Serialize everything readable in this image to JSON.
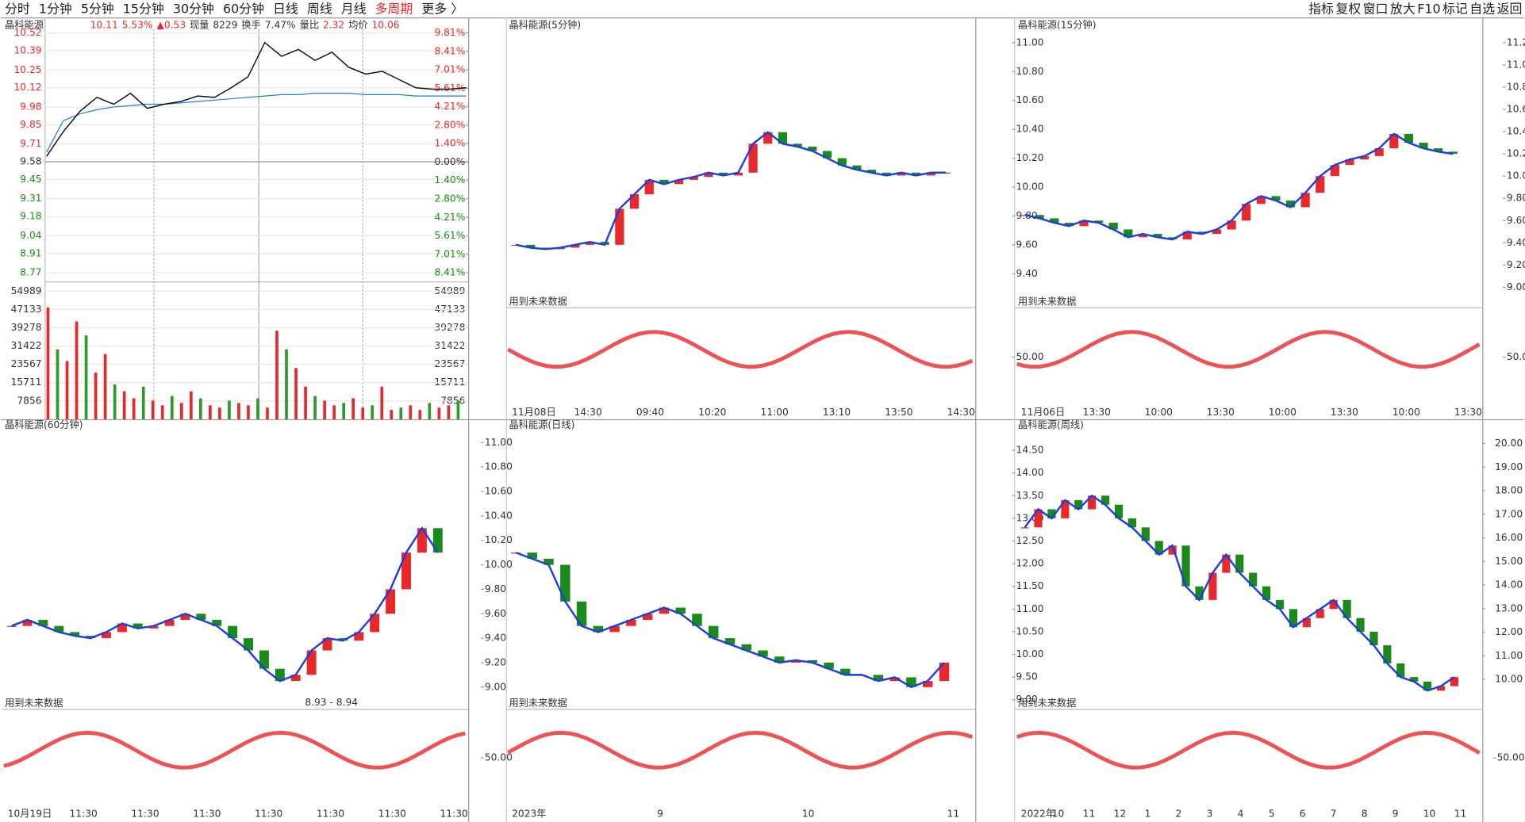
{
  "toolbar": {
    "tabs": [
      "分时",
      "1分钟",
      "5分钟",
      "15分钟",
      "30分钟",
      "60分钟",
      "日线",
      "周线",
      "月线",
      "多周期",
      "更多 〉"
    ],
    "active": "多周期",
    "tools": [
      "指标",
      "复权",
      "窗口",
      "放大",
      "F10",
      "标记",
      "自选",
      "返回"
    ]
  },
  "intraday": {
    "name": "晶科能源",
    "quote": [
      {
        "t": "10.11",
        "c": "red"
      },
      {
        "t": "5.53%",
        "c": "red"
      },
      {
        "t": "▲0.53",
        "c": "red"
      },
      {
        "t": "现量",
        "c": "k"
      },
      {
        "t": "8229",
        "c": "k"
      },
      {
        "t": "换手",
        "c": "k"
      },
      {
        "t": "7.47%",
        "c": "k"
      },
      {
        "t": "量比",
        "c": "k"
      },
      {
        "t": "2.32",
        "c": "red"
      },
      {
        "t": "均价",
        "c": "k"
      },
      {
        "t": "10.06",
        "c": "red"
      }
    ],
    "ylim": [
      8.77,
      10.52
    ],
    "yticks": [
      10.52,
      10.39,
      10.25,
      10.12,
      9.98,
      9.85,
      9.71,
      9.58,
      9.45,
      9.31,
      9.18,
      9.04,
      8.91,
      8.77
    ],
    "y2lim": [
      -8.41,
      9.81
    ],
    "y2ticks": [
      {
        "value": 9.81,
        "label": "9.81%"
      },
      {
        "value": 8.41,
        "label": "8.41%"
      },
      {
        "value": 7.01,
        "label": "7.01%"
      },
      {
        "value": 5.61,
        "label": "5.61%"
      },
      {
        "value": 4.21,
        "label": "4.21%"
      },
      {
        "value": 2.8,
        "label": "2.80%"
      },
      {
        "value": 1.4,
        "label": "1.40%"
      },
      {
        "value": 0,
        "label": "0.00%"
      },
      {
        "value": -1.4,
        "label": "1.40%"
      },
      {
        "value": -2.8,
        "label": "2.80%"
      },
      {
        "value": -4.21,
        "label": "4.21%"
      },
      {
        "value": -5.61,
        "label": "5.61%"
      },
      {
        "value": -7.01,
        "label": "7.01%"
      },
      {
        "value": -8.41,
        "label": "8.41%"
      }
    ],
    "price": [
      9.62,
      9.8,
      9.95,
      10.05,
      10.0,
      10.08,
      9.97,
      10.0,
      10.02,
      10.06,
      10.05,
      10.12,
      10.2,
      10.45,
      10.35,
      10.4,
      10.32,
      10.38,
      10.27,
      10.22,
      10.24,
      10.18,
      10.12,
      10.11,
      10.11,
      10.12
    ],
    "avg": [
      9.65,
      9.88,
      9.93,
      9.96,
      9.98,
      9.99,
      10.0,
      10.0,
      10.01,
      10.02,
      10.03,
      10.04,
      10.05,
      10.06,
      10.07,
      10.07,
      10.08,
      10.08,
      10.08,
      10.07,
      10.07,
      10.07,
      10.06,
      10.06,
      10.06,
      10.06
    ],
    "vlim": [
      0,
      54989
    ],
    "vticks": [
      54989,
      47133,
      39278,
      31422,
      23567,
      15711,
      7856
    ],
    "volume": [
      48000,
      30000,
      25000,
      42000,
      36000,
      20000,
      28000,
      15000,
      12000,
      9000,
      14000,
      8000,
      6000,
      10000,
      7000,
      12000,
      9000,
      6000,
      5000,
      8000,
      7000,
      6000,
      9000,
      5000,
      38000,
      30000,
      22000,
      14000,
      10000,
      8000,
      6000,
      7000,
      9000,
      5000,
      6000,
      14000,
      4000,
      5000,
      6000,
      4000,
      7000,
      5000,
      6000,
      8000
    ]
  },
  "panels": [
    {
      "title": "晶科能源(5分钟)",
      "ylim": [
        9.4,
        11
      ],
      "yticks": [
        {
          "value": 11,
          "label": "11.00"
        },
        {
          "value": 10.8,
          "label": "10.80"
        },
        {
          "value": 10.6,
          "label": "10.60"
        },
        {
          "value": 10.4,
          "label": "10.40"
        },
        {
          "value": 10.2,
          "label": "10.20"
        },
        {
          "value": 10,
          "label": "10.00"
        },
        {
          "value": 9.8,
          "label": "9.80"
        },
        {
          "value": 9.6,
          "label": "9.60"
        },
        {
          "value": 9.4,
          "label": "9.40"
        }
      ],
      "sub_tick": {
        "value": 50,
        "label": "50.00"
      },
      "note": "用到未来数据",
      "times": [
        "11月08日",
        "14:30",
        "09:40",
        "10:20",
        "11:00",
        "13:10",
        "13:50",
        "14:30"
      ],
      "closes": [
        9.6,
        9.58,
        9.57,
        9.58,
        9.6,
        9.62,
        9.6,
        9.85,
        9.95,
        10.05,
        10.02,
        10.05,
        10.07,
        10.1,
        10.08,
        10.1,
        10.3,
        10.38,
        10.3,
        10.28,
        10.25,
        10.2,
        10.15,
        10.12,
        10.1,
        10.08,
        10.1,
        10.08,
        10.1,
        10.1
      ]
    },
    {
      "title": "晶科能源(15分钟)",
      "ylim": [
        9,
        11.2
      ],
      "yticks": [
        {
          "value": 11.2,
          "label": "11.20"
        },
        {
          "value": 11,
          "label": "11.00"
        },
        {
          "value": 10.8,
          "label": "10.80"
        },
        {
          "value": 10.6,
          "label": "10.60"
        },
        {
          "value": 10.4,
          "label": "10.40"
        },
        {
          "value": 10.2,
          "label": "10.20"
        },
        {
          "value": 10,
          "label": "10.00"
        },
        {
          "value": 9.8,
          "label": "9.80"
        },
        {
          "value": 9.6,
          "label": "9.60"
        },
        {
          "value": 9.4,
          "label": "9.40"
        },
        {
          "value": 9.2,
          "label": "9.20"
        },
        {
          "value": 9,
          "label": "9.00"
        }
      ],
      "sub_tick": {
        "value": 50,
        "label": "50.00"
      },
      "note": "用到未来数据",
      "times": [
        "11月06日",
        "13:30",
        "10:00",
        "13:30",
        "10:00",
        "13:30",
        "10:00",
        "13:30"
      ],
      "closes": [
        9.65,
        9.62,
        9.58,
        9.55,
        9.6,
        9.58,
        9.52,
        9.45,
        9.48,
        9.45,
        9.43,
        9.5,
        9.48,
        9.52,
        9.6,
        9.75,
        9.82,
        9.78,
        9.72,
        9.85,
        10.0,
        10.1,
        10.15,
        10.18,
        10.25,
        10.38,
        10.3,
        10.25,
        10.22,
        10.2
      ]
    },
    {
      "title": "晶科能源(60分钟)",
      "ylim": [
        9,
        11
      ],
      "note": "用到未来数据",
      "times": [
        "10月19日",
        "11:30",
        "11:30",
        "11:30",
        "11:30",
        "11:30",
        "11:30",
        "11:30"
      ],
      "annotation": "8.93 - 8.94",
      "closes": [
        9.5,
        9.55,
        9.5,
        9.45,
        9.42,
        9.4,
        9.45,
        9.52,
        9.48,
        9.5,
        9.55,
        9.6,
        9.55,
        9.5,
        9.4,
        9.3,
        9.15,
        9.05,
        9.1,
        9.3,
        9.4,
        9.38,
        9.45,
        9.6,
        9.8,
        10.1,
        10.3,
        10.1
      ]
    },
    {
      "title": "晶科能源(日线)",
      "ylim": [
        9,
        11
      ],
      "yticks": [
        {
          "value": 11,
          "label": "11.00"
        },
        {
          "value": 10.8,
          "label": "10.80"
        },
        {
          "value": 10.6,
          "label": "10.60"
        },
        {
          "value": 10.4,
          "label": "10.40"
        },
        {
          "value": 10.2,
          "label": "10.20"
        },
        {
          "value": 10,
          "label": "10.00"
        },
        {
          "value": 9.8,
          "label": "9.80"
        },
        {
          "value": 9.6,
          "label": "9.60"
        },
        {
          "value": 9.4,
          "label": "9.40"
        },
        {
          "value": 9.2,
          "label": "9.20"
        },
        {
          "value": 9,
          "label": "9.00"
        }
      ],
      "sub_tick": {
        "value": 50,
        "label": "50.00"
      },
      "note": "用到未来数据",
      "times": [
        "2023年",
        "9",
        "10",
        "11"
      ],
      "closes": [
        10.1,
        10.05,
        10.0,
        9.7,
        9.5,
        9.45,
        9.5,
        9.55,
        9.6,
        9.65,
        9.6,
        9.5,
        9.4,
        9.35,
        9.3,
        9.25,
        9.2,
        9.22,
        9.2,
        9.15,
        9.1,
        9.1,
        9.05,
        9.08,
        9.0,
        9.05,
        9.2
      ]
    },
    {
      "title": "晶科能源(周线)",
      "ylim": [
        9,
        14.5
      ],
      "yticks": [
        {
          "value": 14.5,
          "label": "14.50"
        },
        {
          "value": 14,
          "label": "14.00"
        },
        {
          "value": 13.5,
          "label": "13.50"
        },
        {
          "value": 13,
          "label": "13.00"
        },
        {
          "value": 12.5,
          "label": "12.50"
        },
        {
          "value": 12,
          "label": "12.00"
        },
        {
          "value": 11.5,
          "label": "11.50"
        },
        {
          "value": 11,
          "label": "11.00"
        },
        {
          "value": 10.5,
          "label": "10.50"
        },
        {
          "value": 10,
          "label": "10.00"
        },
        {
          "value": 9.5,
          "label": "9.50"
        },
        {
          "value": 9,
          "label": "9.00"
        }
      ],
      "y2lim": [
        10,
        20
      ],
      "y2ticks": [
        {
          "value": 20,
          "label": "20.00"
        },
        {
          "value": 19,
          "label": "19.00"
        },
        {
          "value": 18,
          "label": "18.00"
        },
        {
          "value": 17,
          "label": "17.00"
        },
        {
          "value": 16,
          "label": "16.00"
        },
        {
          "value": 15,
          "label": "15.00"
        },
        {
          "value": 14,
          "label": "14.00"
        },
        {
          "value": 13,
          "label": "13.00"
        },
        {
          "value": 12,
          "label": "12.00"
        },
        {
          "value": 11,
          "label": "11.00"
        },
        {
          "value": 10,
          "label": "10.00"
        }
      ],
      "sub_tick": {
        "value": 50,
        "label": "50.00"
      },
      "note": "用到未来数据",
      "times": [
        "2022年",
        "10",
        "11",
        "12",
        "1",
        "2",
        "3",
        "4",
        "5",
        "6",
        "7",
        "8",
        "9",
        "10",
        "11"
      ],
      "closes": [
        12.8,
        13.2,
        13.0,
        13.4,
        13.2,
        13.5,
        13.3,
        13.0,
        12.8,
        12.5,
        12.2,
        12.4,
        11.5,
        11.2,
        11.8,
        12.2,
        11.8,
        11.5,
        11.2,
        11.0,
        10.6,
        10.8,
        11.0,
        11.2,
        10.8,
        10.5,
        10.2,
        9.8,
        9.5,
        9.4,
        9.2,
        9.3,
        9.5
      ]
    }
  ]
}
